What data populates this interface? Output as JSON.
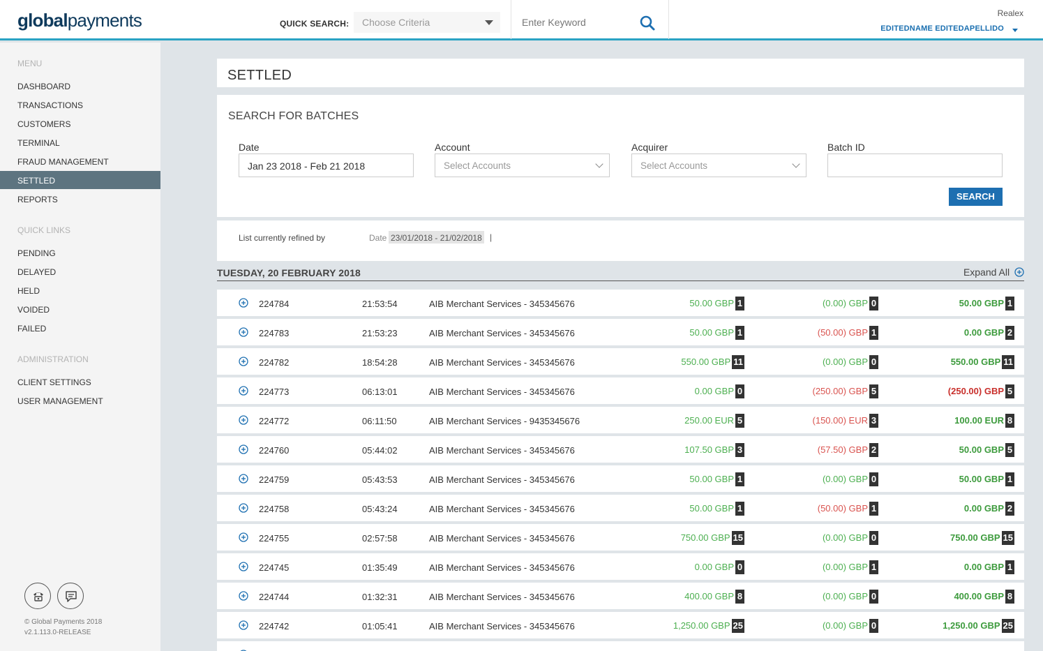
{
  "header": {
    "logo_bold": "global",
    "logo_light": "payments",
    "quick_search_label": "QUICK SEARCH:",
    "criteria_placeholder": "Choose Criteria",
    "keyword_placeholder": "Enter Keyword",
    "company": "Realex",
    "username": "EDITEDNAME EDITEDAPELLIDO"
  },
  "sidebar": {
    "menu_heading": "MENU",
    "menu_items": [
      {
        "label": "DASHBOARD",
        "active": false
      },
      {
        "label": "TRANSACTIONS",
        "active": false
      },
      {
        "label": "CUSTOMERS",
        "active": false
      },
      {
        "label": "TERMINAL",
        "active": false
      },
      {
        "label": "FRAUD MANAGEMENT",
        "active": false
      },
      {
        "label": "SETTLED",
        "active": true
      },
      {
        "label": "REPORTS",
        "active": false
      }
    ],
    "quick_links_heading": "QUICK LINKS",
    "quick_links": [
      {
        "label": "PENDING"
      },
      {
        "label": "DELAYED"
      },
      {
        "label": "HELD"
      },
      {
        "label": "VOIDED"
      },
      {
        "label": "FAILED"
      }
    ],
    "admin_heading": "ADMINISTRATION",
    "admin_items": [
      {
        "label": "CLIENT SETTINGS"
      },
      {
        "label": "USER MANAGEMENT"
      }
    ],
    "copyright": "© Global Payments 2018",
    "version": "v2.1.113.0-RELEASE"
  },
  "page": {
    "title": "SETTLED"
  },
  "search": {
    "title": "SEARCH FOR BATCHES",
    "date_label": "Date",
    "date_value": "Jan 23 2018 - Feb 21 2018",
    "account_label": "Account",
    "account_placeholder": "Select Accounts",
    "acquirer_label": "Acquirer",
    "acquirer_placeholder": "Select Accounts",
    "batch_label": "Batch ID",
    "batch_value": "",
    "button": "SEARCH"
  },
  "refine": {
    "label": "List currently refined by",
    "field": "Date",
    "value": "23/01/2018 - 21/02/2018",
    "separator": "|"
  },
  "group": {
    "date": "TUESDAY, 20 FEBRUARY 2018",
    "expand_all": "Expand All"
  },
  "colors": {
    "accent": "#2aa3c4",
    "active_nav": "#5d7480",
    "button": "#1d6fb1",
    "positive": "#4caf50",
    "negative": "#d9534f"
  },
  "batches": [
    {
      "id": "224784",
      "time": "21:53:54",
      "merchant": "AIB Merchant Services - 345345676",
      "sales": "50.00 GBP",
      "sales_count": "1",
      "refunds": "(0.00) GBP",
      "refunds_count": "0",
      "net": "50.00 GBP",
      "net_count": "1",
      "refunds_neg": false,
      "net_neg": false
    },
    {
      "id": "224783",
      "time": "21:53:23",
      "merchant": "AIB Merchant Services - 345345676",
      "sales": "50.00 GBP",
      "sales_count": "1",
      "refunds": "(50.00) GBP",
      "refunds_count": "1",
      "net": "0.00 GBP",
      "net_count": "2",
      "refunds_neg": true,
      "net_neg": false
    },
    {
      "id": "224782",
      "time": "18:54:28",
      "merchant": "AIB Merchant Services - 345345676",
      "sales": "550.00 GBP",
      "sales_count": "11",
      "refunds": "(0.00) GBP",
      "refunds_count": "0",
      "net": "550.00 GBP",
      "net_count": "11",
      "refunds_neg": false,
      "net_neg": false
    },
    {
      "id": "224773",
      "time": "06:13:01",
      "merchant": "AIB Merchant Services - 345345676",
      "sales": "0.00 GBP",
      "sales_count": "0",
      "refunds": "(250.00) GBP",
      "refunds_count": "5",
      "net": "(250.00) GBP",
      "net_count": "5",
      "refunds_neg": true,
      "net_neg": true
    },
    {
      "id": "224772",
      "time": "06:11:50",
      "merchant": "AIB Merchant Services - 9435345676",
      "sales": "250.00 EUR",
      "sales_count": "5",
      "refunds": "(150.00) EUR",
      "refunds_count": "3",
      "net": "100.00 EUR",
      "net_count": "8",
      "refunds_neg": true,
      "net_neg": false
    },
    {
      "id": "224760",
      "time": "05:44:02",
      "merchant": "AIB Merchant Services - 345345676",
      "sales": "107.50 GBP",
      "sales_count": "3",
      "refunds": "(57.50) GBP",
      "refunds_count": "2",
      "net": "50.00 GBP",
      "net_count": "5",
      "refunds_neg": true,
      "net_neg": false
    },
    {
      "id": "224759",
      "time": "05:43:53",
      "merchant": "AIB Merchant Services - 345345676",
      "sales": "50.00 GBP",
      "sales_count": "1",
      "refunds": "(0.00) GBP",
      "refunds_count": "0",
      "net": "50.00 GBP",
      "net_count": "1",
      "refunds_neg": false,
      "net_neg": false
    },
    {
      "id": "224758",
      "time": "05:43:24",
      "merchant": "AIB Merchant Services - 345345676",
      "sales": "50.00 GBP",
      "sales_count": "1",
      "refunds": "(50.00) GBP",
      "refunds_count": "1",
      "net": "0.00 GBP",
      "net_count": "2",
      "refunds_neg": true,
      "net_neg": false
    },
    {
      "id": "224755",
      "time": "02:57:58",
      "merchant": "AIB Merchant Services - 345345676",
      "sales": "750.00 GBP",
      "sales_count": "15",
      "refunds": "(0.00) GBP",
      "refunds_count": "0",
      "net": "750.00 GBP",
      "net_count": "15",
      "refunds_neg": false,
      "net_neg": false
    },
    {
      "id": "224745",
      "time": "01:35:49",
      "merchant": "AIB Merchant Services - 345345676",
      "sales": "0.00 GBP",
      "sales_count": "0",
      "refunds": "(0.00) GBP",
      "refunds_count": "1",
      "net": "0.00 GBP",
      "net_count": "1",
      "refunds_neg": false,
      "net_neg": false
    },
    {
      "id": "224744",
      "time": "01:32:31",
      "merchant": "AIB Merchant Services - 345345676",
      "sales": "400.00 GBP",
      "sales_count": "8",
      "refunds": "(0.00) GBP",
      "refunds_count": "0",
      "net": "400.00 GBP",
      "net_count": "8",
      "refunds_neg": false,
      "net_neg": false
    },
    {
      "id": "224742",
      "time": "01:05:41",
      "merchant": "AIB Merchant Services - 345345676",
      "sales": "1,250.00 GBP",
      "sales_count": "25",
      "refunds": "(0.00) GBP",
      "refunds_count": "0",
      "net": "1,250.00 GBP",
      "net_count": "25",
      "refunds_neg": false,
      "net_neg": false
    }
  ]
}
